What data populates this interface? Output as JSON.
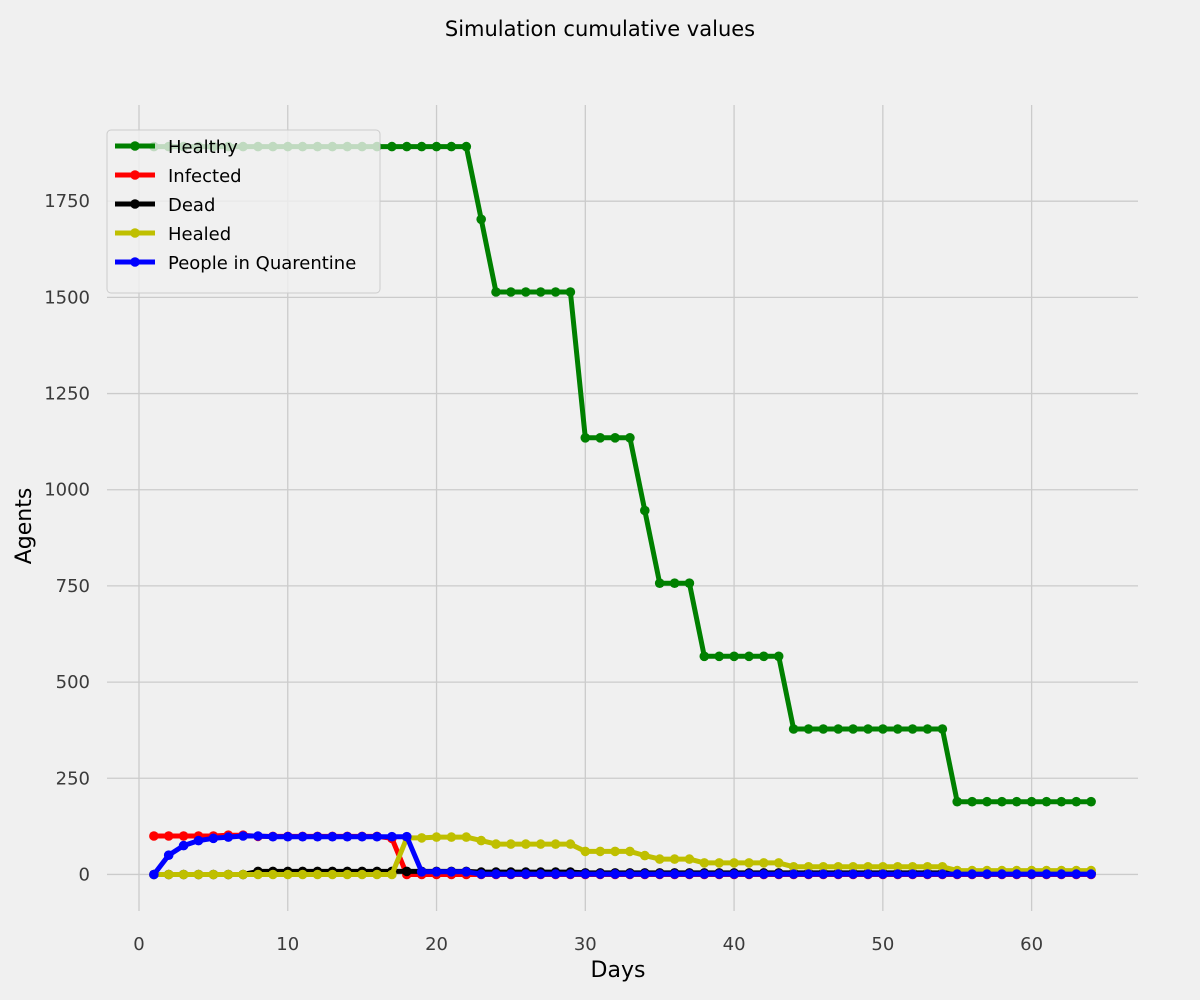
{
  "chart_data": {
    "type": "line",
    "title": "Simulation cumulative values",
    "xlabel": "Days",
    "ylabel": "Agents",
    "xlim": [
      -2.15,
      67.15
    ],
    "ylim": [
      -95,
      2000
    ],
    "x_ticks": [
      0,
      10,
      20,
      30,
      40,
      50,
      60
    ],
    "y_ticks": [
      0,
      250,
      500,
      750,
      1000,
      1250,
      1500,
      1750
    ],
    "grid": true,
    "legend_position": "upper left",
    "colors": {
      "background": "#f0f0f0",
      "grid": "#cbcbcb"
    },
    "series": [
      {
        "name": "Healthy",
        "color": "#008000",
        "segments": [
          [
            1,
            22,
            1892
          ],
          [
            23,
            23,
            1703
          ],
          [
            24,
            29,
            1514
          ],
          [
            30,
            33,
            1135
          ],
          [
            34,
            34,
            946
          ],
          [
            35,
            37,
            757
          ],
          [
            38,
            43,
            567
          ],
          [
            44,
            54,
            378
          ],
          [
            55,
            64,
            189
          ]
        ]
      },
      {
        "name": "Infected",
        "color": "#ff0000",
        "segments": [
          [
            1,
            5,
            100
          ],
          [
            6,
            7,
            102
          ],
          [
            8,
            16,
            99
          ],
          [
            17,
            17,
            94
          ],
          [
            18,
            64,
            0
          ]
        ]
      },
      {
        "name": "Dead",
        "color": "#000000",
        "segments": [
          [
            1,
            7,
            0
          ],
          [
            8,
            22,
            8
          ],
          [
            23,
            29,
            6
          ],
          [
            30,
            64,
            4
          ]
        ]
      },
      {
        "name": "Healed",
        "color": "#bfbf00",
        "segments": [
          [
            1,
            17,
            0
          ],
          [
            18,
            19,
            95
          ],
          [
            20,
            22,
            97
          ],
          [
            23,
            23,
            88
          ],
          [
            24,
            29,
            79
          ],
          [
            30,
            33,
            60
          ],
          [
            34,
            34,
            49
          ],
          [
            35,
            37,
            40
          ],
          [
            38,
            43,
            30
          ],
          [
            44,
            54,
            20
          ],
          [
            55,
            64,
            10
          ]
        ]
      },
      {
        "name": "People in Quarentine",
        "color": "#0000ff",
        "segments": [
          [
            1,
            1,
            0
          ],
          [
            2,
            2,
            50
          ],
          [
            3,
            3,
            75
          ],
          [
            4,
            4,
            88
          ],
          [
            5,
            5,
            94
          ],
          [
            6,
            6,
            97
          ],
          [
            7,
            8,
            100
          ],
          [
            9,
            18,
            98
          ],
          [
            19,
            22,
            7
          ],
          [
            23,
            64,
            1
          ]
        ]
      }
    ]
  }
}
